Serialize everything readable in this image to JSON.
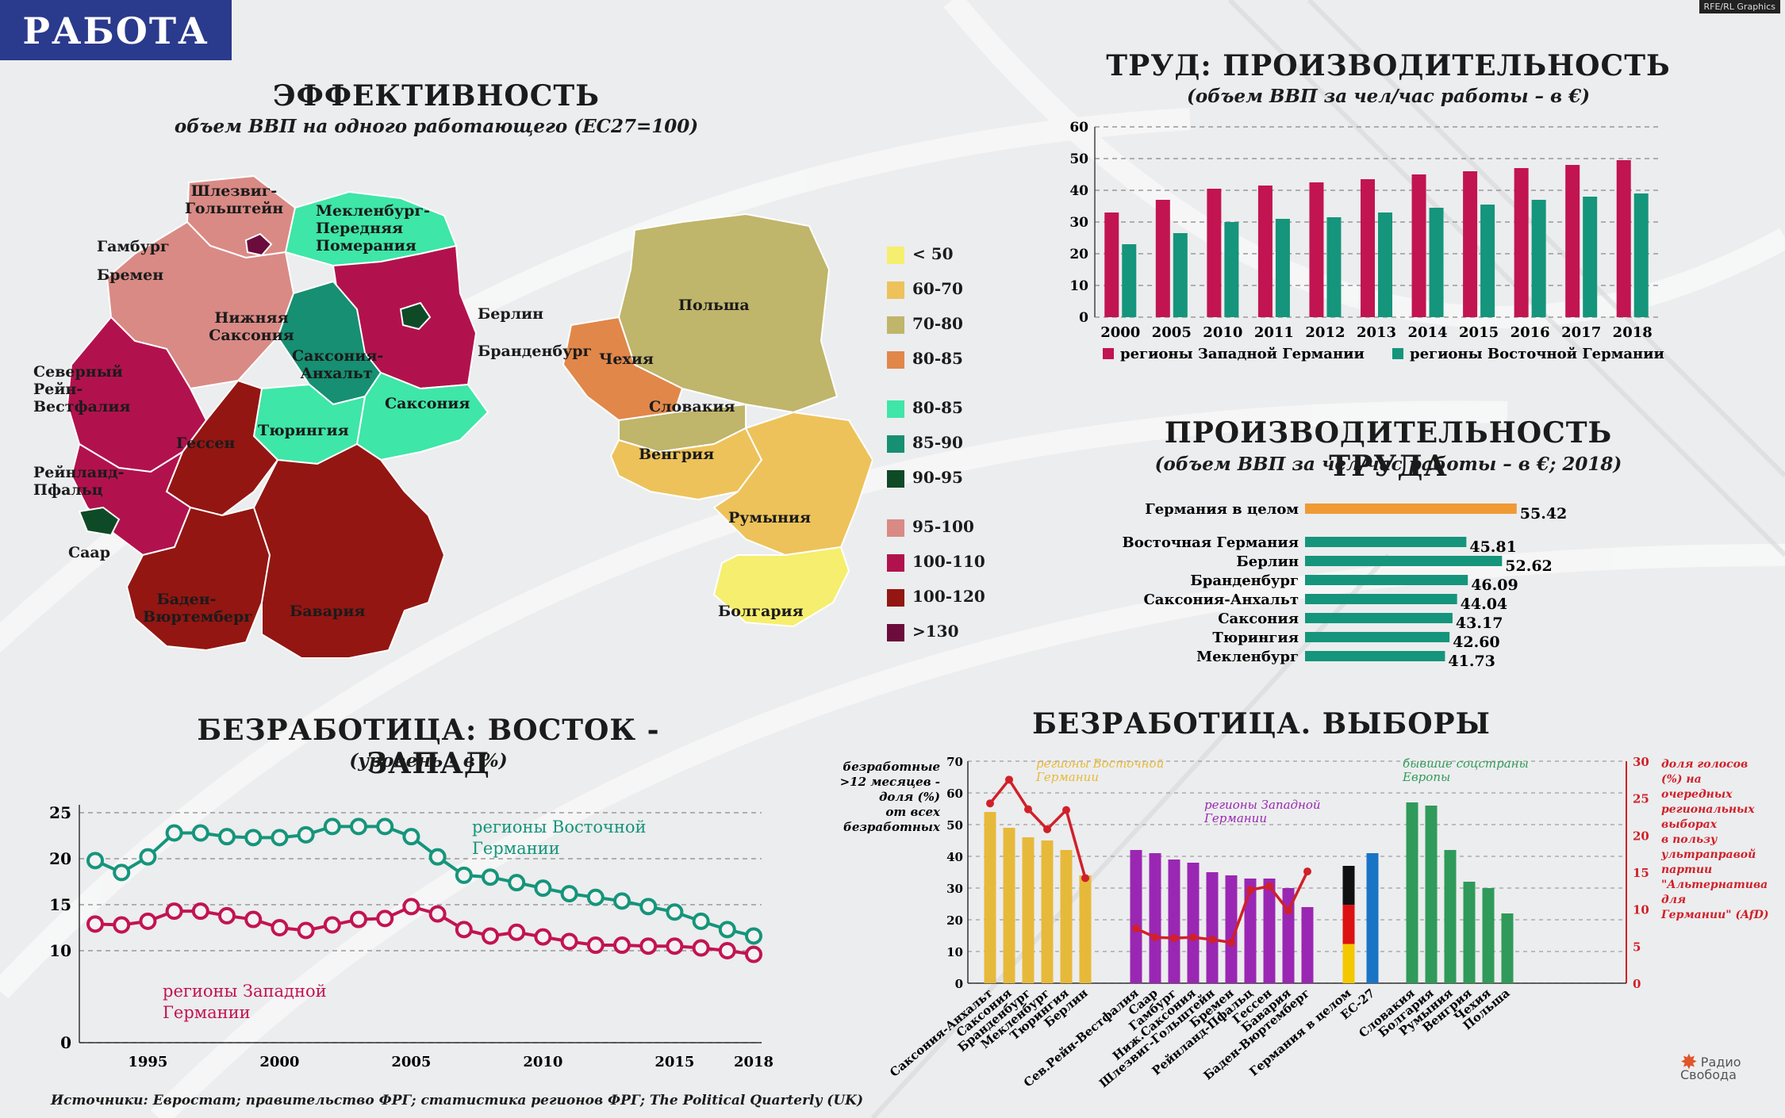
{
  "badge": "РАБОТА",
  "top_right_text": "RFE/RL Graphics",
  "map": {
    "title": "ЭФФЕКТИВНОСТЬ",
    "subtitle": "объем ВВП на одного работающего (ЕС27=100)",
    "regions": [
      {
        "name": "Шлезвиг-Гольштейн",
        "color": "#d98a85"
      },
      {
        "name": "Мекленбург-Передняя Померания",
        "color": "#3ee6a7"
      },
      {
        "name": "Гамбург",
        "color": "#6b0c3c"
      },
      {
        "name": "Бремен",
        "color": "#c8134f"
      },
      {
        "name": "Нижняя Саксония",
        "color": "#d98a85"
      },
      {
        "name": "Берлин",
        "color": "#b1124d"
      },
      {
        "name": "Бранденбург",
        "color": "#0f4a26"
      },
      {
        "name": "Саксония-Анхальт",
        "color": "#168f72"
      },
      {
        "name": "Северный Рейн-Вестфалия",
        "color": "#b1124d"
      },
      {
        "name": "Саксония",
        "color": "#3ee6a7"
      },
      {
        "name": "Тюрингия",
        "color": "#3ee6a7"
      },
      {
        "name": "Гессен",
        "color": "#931612"
      },
      {
        "name": "Рейнланд-Пфальц",
        "color": "#b1124d"
      },
      {
        "name": "Саар",
        "color": "#0f4a26"
      },
      {
        "name": "Баден-Вюртемберг",
        "color": "#931612"
      },
      {
        "name": "Бавария",
        "color": "#931612"
      },
      {
        "name": "Польша",
        "color": "#bfb56b"
      },
      {
        "name": "Чехия",
        "color": "#e1874a"
      },
      {
        "name": "Словакия",
        "color": "#bfb56b"
      },
      {
        "name": "Венгрия",
        "color": "#edc25a"
      },
      {
        "name": "Румыния",
        "color": "#edc25a"
      },
      {
        "name": "Болгария",
        "color": "#f6ee6e"
      }
    ],
    "legend": [
      {
        "label": "< 50",
        "color": "#f6ee6e"
      },
      {
        "label": "60-70",
        "color": "#edc25a"
      },
      {
        "label": "70-80",
        "color": "#bfb56b"
      },
      {
        "label": "80-85",
        "color": "#e1874a"
      },
      {
        "label": "80-85",
        "color": "#3ee6a7"
      },
      {
        "label": "85-90",
        "color": "#168f72"
      },
      {
        "label": "90-95",
        "color": "#0f4a26"
      },
      {
        "label": "95-100",
        "color": "#d98a85"
      },
      {
        "label": "100-110",
        "color": "#b1124d"
      },
      {
        "label": "100-120",
        "color": "#931612"
      },
      {
        "label": ">130",
        "color": "#6b0c3c"
      }
    ]
  },
  "chart_data": [
    {
      "id": "productivity",
      "type": "bar",
      "title": "ТРУД: ПРОИЗВОДИТЕЛЬНОСТЬ",
      "subtitle": "(объем ВВП за чел/час работы – в €)",
      "categories": [
        "2000",
        "2005",
        "2010",
        "2011",
        "2012",
        "2013",
        "2014",
        "2015",
        "2016",
        "2017",
        "2018"
      ],
      "series": [
        {
          "name": "регионы Западной Германии",
          "color": "#c21450",
          "values": [
            33,
            37,
            40.5,
            41.5,
            42.5,
            43.5,
            45,
            46,
            47,
            48,
            49.5
          ]
        },
        {
          "name": "регионы Восточной Германии",
          "color": "#15957b",
          "values": [
            23,
            26.5,
            30,
            31,
            31.5,
            33,
            34.5,
            35.5,
            37,
            38,
            39
          ]
        }
      ],
      "ylim": [
        0,
        60
      ],
      "yticks": [
        0,
        10,
        20,
        30,
        40,
        50,
        60
      ],
      "grid": true,
      "legend": "bottom"
    },
    {
      "id": "productivity2018",
      "type": "bar",
      "orientation": "horizontal",
      "title": "ПРОИЗВОДИТЕЛЬНОСТЬ ТРУДА",
      "subtitle": "(объем ВВП за чел/час работы – в €; 2018)",
      "categories": [
        "Германия в целом",
        "Восточная Германия",
        "Берлин",
        "Бранденбург",
        "Саксония-Анхальт",
        "Саксония",
        "Тюрингия",
        "Мекленбург"
      ],
      "values": [
        55.42,
        45.81,
        52.62,
        46.09,
        44.04,
        43.17,
        42.6,
        41.73
      ],
      "labels": [
        "55.42",
        "45.81",
        "52.62",
        "46.09",
        "44.04",
        "43.17",
        "42.60",
        "41.73"
      ],
      "colors": [
        "#ef9a35",
        "#15957b",
        "#15957b",
        "#15957b",
        "#15957b",
        "#15957b",
        "#15957b",
        "#15957b"
      ]
    },
    {
      "id": "unemployment",
      "type": "line",
      "title": "БЕЗРАБОТИЦА: ВОСТОК - ЗАПАД",
      "subtitle": "(уровень - в %)",
      "x": [
        1993,
        1994,
        1995,
        1996,
        1997,
        1998,
        1999,
        2000,
        2001,
        2002,
        2003,
        2004,
        2005,
        2006,
        2007,
        2008,
        2009,
        2010,
        2011,
        2012,
        2013,
        2014,
        2015,
        2016,
        2017,
        2018
      ],
      "series": [
        {
          "name": "регионы Восточной Германии",
          "color": "#15957b",
          "values": [
            19.8,
            18.5,
            20.2,
            22.8,
            22.8,
            22.4,
            22.3,
            22.3,
            22.6,
            23.5,
            23.5,
            23.5,
            22.4,
            20.2,
            18.2,
            18.0,
            17.4,
            16.8,
            16.2,
            15.8,
            15.4,
            14.8,
            14.2,
            13.2,
            12.3,
            11.6
          ]
        },
        {
          "name": "регионы Западной Германии",
          "color": "#c21450",
          "values": [
            12.9,
            12.8,
            13.2,
            14.3,
            14.3,
            13.8,
            13.4,
            12.5,
            12.2,
            12.8,
            13.4,
            13.5,
            14.8,
            14.0,
            12.3,
            11.6,
            12.0,
            11.5,
            11.0,
            10.6,
            10.6,
            10.5,
            10.5,
            10.3,
            10.0,
            9.6
          ]
        }
      ],
      "xticks": [
        1995,
        2000,
        2005,
        2010,
        2015,
        2018
      ],
      "ylim": [
        0,
        25
      ],
      "yticks": [
        0,
        10,
        15,
        20,
        25
      ],
      "grid": true
    },
    {
      "id": "unemployment_elections",
      "type": "bar",
      "title": "БЕЗРАБОТИЦА. ВЫБОРЫ",
      "left_axis_label": [
        "безработные",
        "&gt;12 месяцев -",
        "доля (%)",
        "от всех",
        "безработных"
      ],
      "right_axis_label": [
        "доля голосов",
        "(%) на",
        "очередных",
        "региональных",
        "выборах",
        "в пользу",
        "ультраправой",
        "партии",
        "\"Альтернатива",
        "для",
        "Германии\" (AfD)"
      ],
      "ylim_left": [
        0,
        70
      ],
      "yticks_left": [
        0,
        10,
        20,
        30,
        40,
        50,
        60,
        70
      ],
      "ylim_right": [
        0,
        30
      ],
      "yticks_right": [
        0,
        5,
        10,
        15,
        20,
        25,
        30
      ],
      "group_labels": [
        {
          "label": "регионы Восточной Германии",
          "color": "#e7b93a"
        },
        {
          "label": "регионы Западной Германии",
          "color": "#9a27b3"
        },
        {
          "label": "бывшие соцстраны Европы",
          "color": "#2f9a5a"
        }
      ],
      "categories": [
        "Саксония-Анхальт",
        "Саксония",
        "Бранденбург",
        "Мекленбург",
        "Тюрингия",
        "Берлин",
        "Сев.Рейн-Вестфалия",
        "Саар",
        "Гамбург",
        "Ниж.Саксония",
        "Шлезвиг-Гольштейн",
        "Бремен",
        "Рейнланд-Пфальц",
        "Гессен",
        "Бавария",
        "Баден-Вюртемберг",
        "Германия в целом",
        "ЕС-27",
        "Словакия",
        "Болгария",
        "Румыния",
        "Венгрия",
        "Чехия",
        "Польша"
      ],
      "values": [
        54,
        49,
        46,
        45,
        42,
        34,
        42,
        41,
        39,
        38,
        35,
        34,
        33,
        33,
        30,
        24,
        37,
        41,
        57,
        56,
        42,
        32,
        30,
        22
      ],
      "colors": [
        "#e7b93a",
        "#e7b93a",
        "#e7b93a",
        "#e7b93a",
        "#e7b93a",
        "#e7b93a",
        "#9a27b3",
        "#9a27b3",
        "#9a27b3",
        "#9a27b3",
        "#9a27b3",
        "#9a27b3",
        "#9a27b3",
        "#9a27b3",
        "#9a27b3",
        "#9a27b3",
        "flag",
        "#1a74c6",
        "#2f9a5a",
        "#2f9a5a",
        "#2f9a5a",
        "#2f9a5a",
        "#2f9a5a",
        "#2f9a5a"
      ],
      "afd_east": [
        24.3,
        27.5,
        23.5,
        20.8,
        23.4,
        14.2
      ],
      "afd_west": [
        7.4,
        6.2,
        6.1,
        6.2,
        5.9,
        5.5,
        12.6,
        13.1,
        9.8,
        15.1
      ]
    }
  ],
  "sources": "Источники: Евростат; правительство ФРГ; статистика регионов ФРГ; The Political Quarterly (UK)",
  "logo": [
    "Радио",
    "Свобода"
  ]
}
